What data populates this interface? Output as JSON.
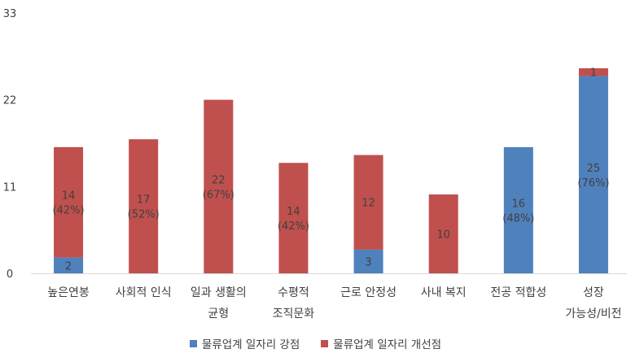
{
  "chart_data": {
    "type": "bar",
    "stacked": true,
    "categories": [
      [
        "높은연봉"
      ],
      [
        "사회적 인식"
      ],
      [
        "일과 생활의",
        "균형"
      ],
      [
        "수평적",
        "조직문화"
      ],
      [
        "근로 안정성"
      ],
      [
        "사내 복지"
      ],
      [
        "전공 적합성"
      ],
      [
        "성장",
        "가능성/비전"
      ]
    ],
    "series": [
      {
        "name": "물류업계 일자리 강점",
        "color": "#4f81bd",
        "values": [
          2,
          0,
          0,
          0,
          3,
          0,
          16,
          25
        ],
        "labels": [
          [
            "2"
          ],
          null,
          null,
          null,
          [
            "3"
          ],
          null,
          [
            "16",
            "(48%)"
          ],
          [
            "25",
            "(76%)"
          ]
        ]
      },
      {
        "name": "물류업계 일자리 개선점",
        "color": "#c0504d",
        "values": [
          14,
          17,
          22,
          14,
          12,
          10,
          0,
          1
        ],
        "labels": [
          [
            "14",
            "(42%)"
          ],
          [
            "17",
            "(52%)"
          ],
          [
            "22",
            "(67%)"
          ],
          [
            "14",
            "(42%)"
          ],
          [
            "12"
          ],
          [
            "10"
          ],
          null,
          [
            "1"
          ]
        ]
      }
    ],
    "yticks": [
      0,
      11,
      22,
      33
    ],
    "ylim": [
      0,
      33
    ],
    "grid": false,
    "legend_position": "bottom"
  }
}
